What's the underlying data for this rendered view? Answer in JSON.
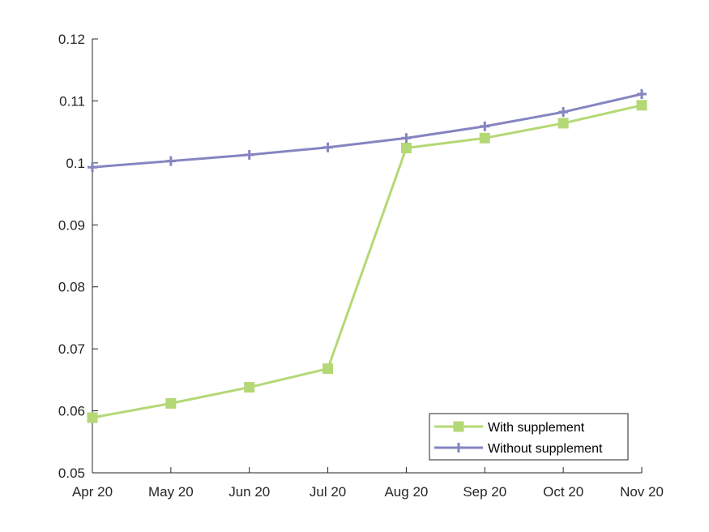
{
  "chart_data": {
    "type": "line",
    "title": "",
    "xlabel": "",
    "ylabel": "",
    "categories": [
      "Apr 20",
      "May 20",
      "Jun 20",
      "Jul 20",
      "Aug 20",
      "Sep 20",
      "Oct 20",
      "Nov 20"
    ],
    "ylim": [
      0.05,
      0.12
    ],
    "yticks": [
      "0.05",
      "0.06",
      "0.07",
      "0.08",
      "0.09",
      "0.1",
      "0.11",
      "0.12"
    ],
    "ytick_values": [
      0.05,
      0.06,
      0.07,
      0.08,
      0.09,
      0.1,
      0.11,
      0.12
    ],
    "grid": false,
    "legend_position": "bottom-right",
    "series": [
      {
        "name": "With supplement",
        "color": "#b5d876",
        "marker": "square",
        "values": [
          0.0589,
          0.0612,
          0.0638,
          0.0668,
          0.1024,
          0.104,
          0.1064,
          0.1093
        ]
      },
      {
        "name": "Without supplement",
        "color": "#8585c2",
        "marker": "plus",
        "values": [
          0.0993,
          0.1003,
          0.1013,
          0.1025,
          0.104,
          0.1059,
          0.1082,
          0.1111
        ]
      }
    ]
  }
}
